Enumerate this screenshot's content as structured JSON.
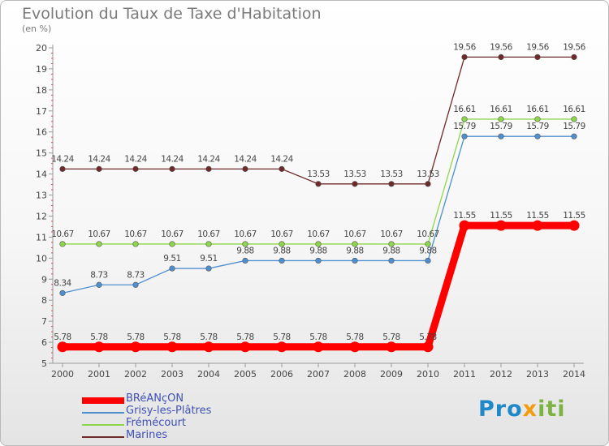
{
  "title": "Evolution du Taux de Taxe d'Habitation",
  "unit": "(en %)",
  "logo": {
    "prefix": "Pro",
    "x": "x",
    "suffix": "iti"
  },
  "chart_data": {
    "type": "line",
    "title": "Evolution du Taux de Taxe d'Habitation",
    "ylabel": "(en %)",
    "categories": [
      "2000",
      "2001",
      "2002",
      "2003",
      "2004",
      "2005",
      "2006",
      "2007",
      "2008",
      "2009",
      "2010",
      "2011",
      "2012",
      "2013",
      "2014"
    ],
    "ylim": [
      5,
      20
    ],
    "yticks": [
      5,
      6,
      7,
      8,
      9,
      10,
      11,
      12,
      13,
      14,
      15,
      16,
      17,
      18,
      19,
      20
    ],
    "series": [
      {
        "name": "BRéANçON",
        "color": "#ff0000",
        "values": [
          5.78,
          5.78,
          5.78,
          5.78,
          5.78,
          5.78,
          5.78,
          5.78,
          5.78,
          5.78,
          5.78,
          11.55,
          11.55,
          11.55,
          11.55
        ],
        "labels": [
          "5.78",
          "5.78",
          "5.78",
          "5.78",
          "5.78",
          "5.78",
          "5.78",
          "5.78",
          "5.78",
          "5.78",
          "5.78",
          "11.55",
          "11.55",
          "11.55",
          "11.55"
        ]
      },
      {
        "name": "Grisy-les-Plâtres",
        "color": "#4f8fcf",
        "values": [
          8.34,
          8.73,
          8.73,
          9.51,
          9.51,
          9.88,
          9.88,
          9.88,
          9.88,
          9.88,
          9.88,
          15.79,
          15.79,
          15.79,
          15.79
        ],
        "labels": [
          "8.34",
          "8.73",
          "8.73",
          "9.51",
          "9.51",
          "9.88",
          "9.88",
          "9.88",
          "9.88",
          "9.88",
          "9.88",
          "15.79",
          "15.79",
          "15.79",
          "15.79"
        ]
      },
      {
        "name": "Frémécourt",
        "color": "#8ed64c",
        "values": [
          10.67,
          10.67,
          10.67,
          10.67,
          10.67,
          10.67,
          10.67,
          10.67,
          10.67,
          10.67,
          10.67,
          16.61,
          16.61,
          16.61,
          16.61
        ],
        "labels": [
          "10.67",
          "10.67",
          "10.67",
          "10.67",
          "10.67",
          "10.67",
          "10.67",
          "10.67",
          "10.67",
          "10.67",
          "10.67",
          "16.61",
          "16.61",
          "16.61",
          "16.61"
        ]
      },
      {
        "name": "Marines",
        "color": "#6e2a2a",
        "values": [
          14.24,
          14.24,
          14.24,
          14.24,
          14.24,
          14.24,
          14.24,
          13.53,
          13.53,
          13.53,
          13.53,
          19.56,
          19.56,
          19.56,
          19.56
        ],
        "labels": [
          "14.24",
          "14.24",
          "14.24",
          "14.24",
          "14.24",
          "14.24",
          "14.24",
          "13.53",
          "13.53",
          "13.53",
          "13.53",
          "19.56",
          "19.56",
          "19.56",
          "19.56"
        ]
      }
    ]
  }
}
